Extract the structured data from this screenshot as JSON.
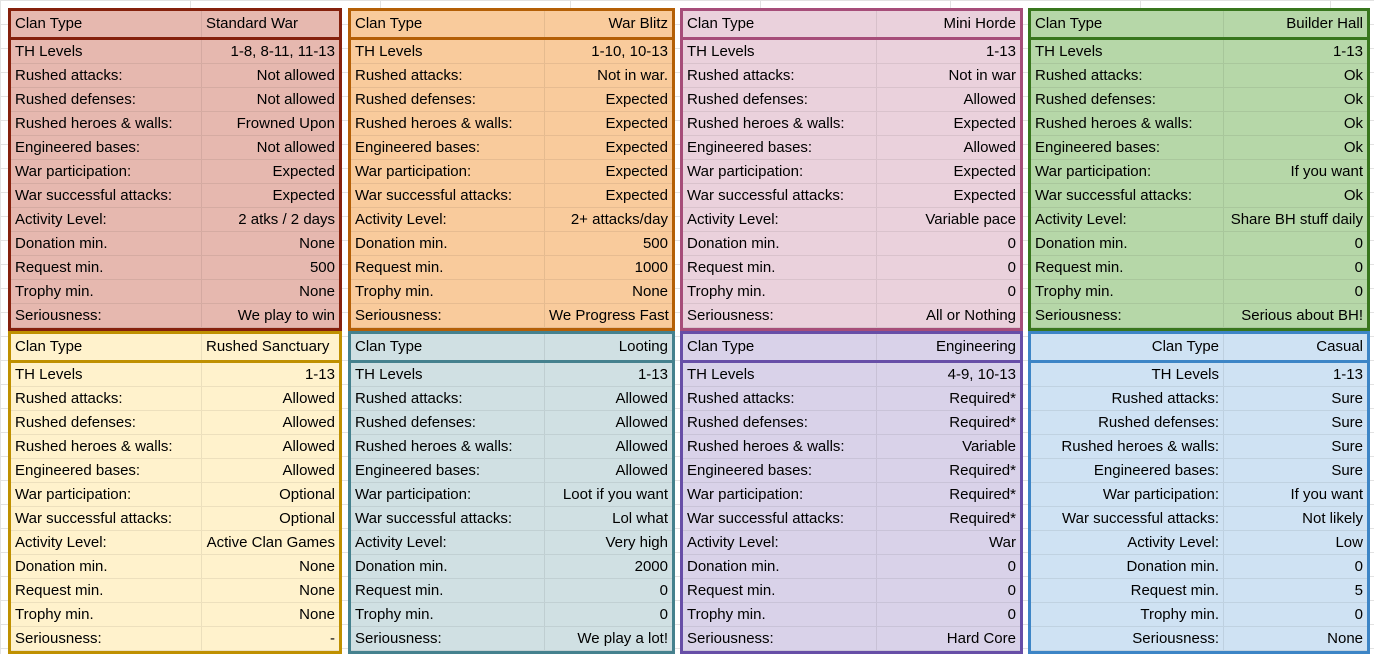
{
  "labels": [
    "TH Levels",
    "Rushed attacks:",
    "Rushed defenses:",
    "Rushed heroes & walls:",
    "Engineered bases:",
    "War participation:",
    "War successful attacks:",
    "Activity Level:",
    "Donation min.",
    "Request min.",
    "Trophy min.",
    "Seriousness:"
  ],
  "header_label": "Clan Type",
  "tables": [
    {
      "type": "Standard War",
      "bg": "#e6b8af",
      "border": "#85200c",
      "values": [
        "1-8, 8-11, 11-13",
        "Not allowed",
        "Not allowed",
        "Frowned Upon",
        "Not allowed",
        "Expected",
        "Expected",
        "2 atks / 2 days",
        "None",
        "500",
        "None",
        "We play to win"
      ]
    },
    {
      "type": "War Blitz",
      "bg": "#f9cb9c",
      "border": "#b45f06",
      "values": [
        "1-10, 10-13",
        "Not in war.",
        "Expected",
        "Expected",
        "Expected",
        "Expected",
        "Expected",
        "2+ attacks/day",
        "500",
        "1000",
        "None",
        "We Progress Fast"
      ]
    },
    {
      "type": "Mini Horde",
      "bg": "#ead1dc",
      "border": "#a64d79",
      "values": [
        "1-13",
        "Not in war",
        "Allowed",
        "Expected",
        "Allowed",
        "Expected",
        "Expected",
        "Variable pace",
        "0",
        "0",
        "0",
        "All or Nothing"
      ]
    },
    {
      "type": "Builder Hall",
      "bg": "#b6d7a8",
      "border": "#38761d",
      "values": [
        "1-13",
        "Ok",
        "Ok",
        "Ok",
        "Ok",
        "If you want",
        "Ok",
        "Share BH stuff daily",
        "0",
        "0",
        "0",
        "Serious about BH!"
      ]
    },
    {
      "type": "Rushed Sanctuary",
      "bg": "#fff2cc",
      "border": "#bf9000",
      "values": [
        "1-13",
        "Allowed",
        "Allowed",
        "Allowed",
        "Allowed",
        "Optional",
        "Optional",
        "Active Clan Games",
        "None",
        "None",
        "None",
        "-"
      ]
    },
    {
      "type": "Looting",
      "bg": "#d0e0e3",
      "border": "#45818e",
      "values": [
        "1-13",
        "Allowed",
        "Allowed",
        "Allowed",
        "Allowed",
        "Loot if you want",
        "Lol what",
        "Very high",
        "2000",
        "0",
        "0",
        "We play a lot!"
      ]
    },
    {
      "type": "Engineering",
      "bg": "#d9d2e9",
      "border": "#674ea7",
      "values": [
        "4-9, 10-13",
        "Required*",
        "Required*",
        "Variable",
        "Required*",
        "Required*",
        "Required*",
        "War",
        "0",
        "0",
        "0",
        "Hard Core"
      ]
    },
    {
      "type": "Casual",
      "bg": "#cfe2f3",
      "border": "#3d85c6",
      "values": [
        "1-13",
        "Sure",
        "Sure",
        "Sure",
        "Sure",
        "If you want",
        "Not likely",
        "Low",
        "0",
        "5",
        "0",
        "None"
      ]
    }
  ]
}
